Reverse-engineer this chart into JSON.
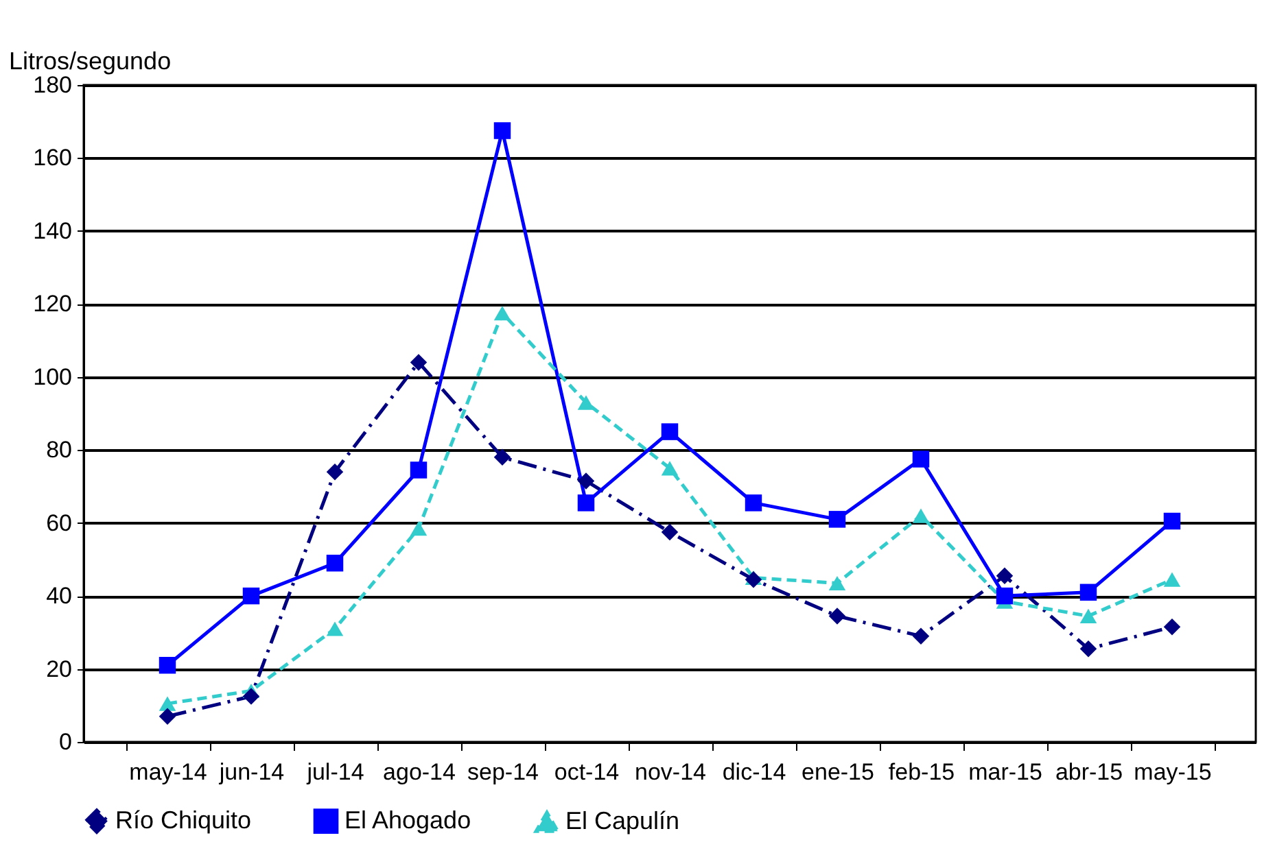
{
  "chart_data": {
    "type": "line",
    "ylabel": "Litros/segundo",
    "categories": [
      "may-14",
      "jun-14",
      "jul-14",
      "ago-14",
      "sep-14",
      "oct-14",
      "nov-14",
      "dic-14",
      "ene-15",
      "feb-15",
      "mar-15",
      "abr-15",
      "may-15"
    ],
    "series": [
      {
        "name": "Río Chiquito",
        "color": "#000080",
        "marker": "diamond",
        "line_style": "dashdot",
        "values": [
          7,
          12.5,
          74,
          104,
          78,
          71.5,
          57.5,
          44.5,
          34.5,
          29,
          45.5,
          25.5,
          31.5
        ]
      },
      {
        "name": "El Ahogado",
        "color": "#0000ff",
        "marker": "square",
        "line_style": "solid",
        "values": [
          21,
          40,
          49,
          74.5,
          167.5,
          65.5,
          85,
          65.5,
          61,
          77.5,
          40,
          41,
          60.5
        ]
      },
      {
        "name": "El Capulín",
        "color": "#33cccc",
        "marker": "triangle",
        "line_style": "dashed",
        "values": [
          10.5,
          14,
          31,
          58.5,
          117.5,
          93,
          75,
          45,
          43.5,
          62,
          38.5,
          34.5,
          44.5
        ]
      }
    ],
    "ylim": [
      0,
      180
    ],
    "yticks": [
      0,
      20,
      40,
      60,
      80,
      100,
      120,
      140,
      160,
      180
    ],
    "grid": "y",
    "legend": "bottom"
  }
}
